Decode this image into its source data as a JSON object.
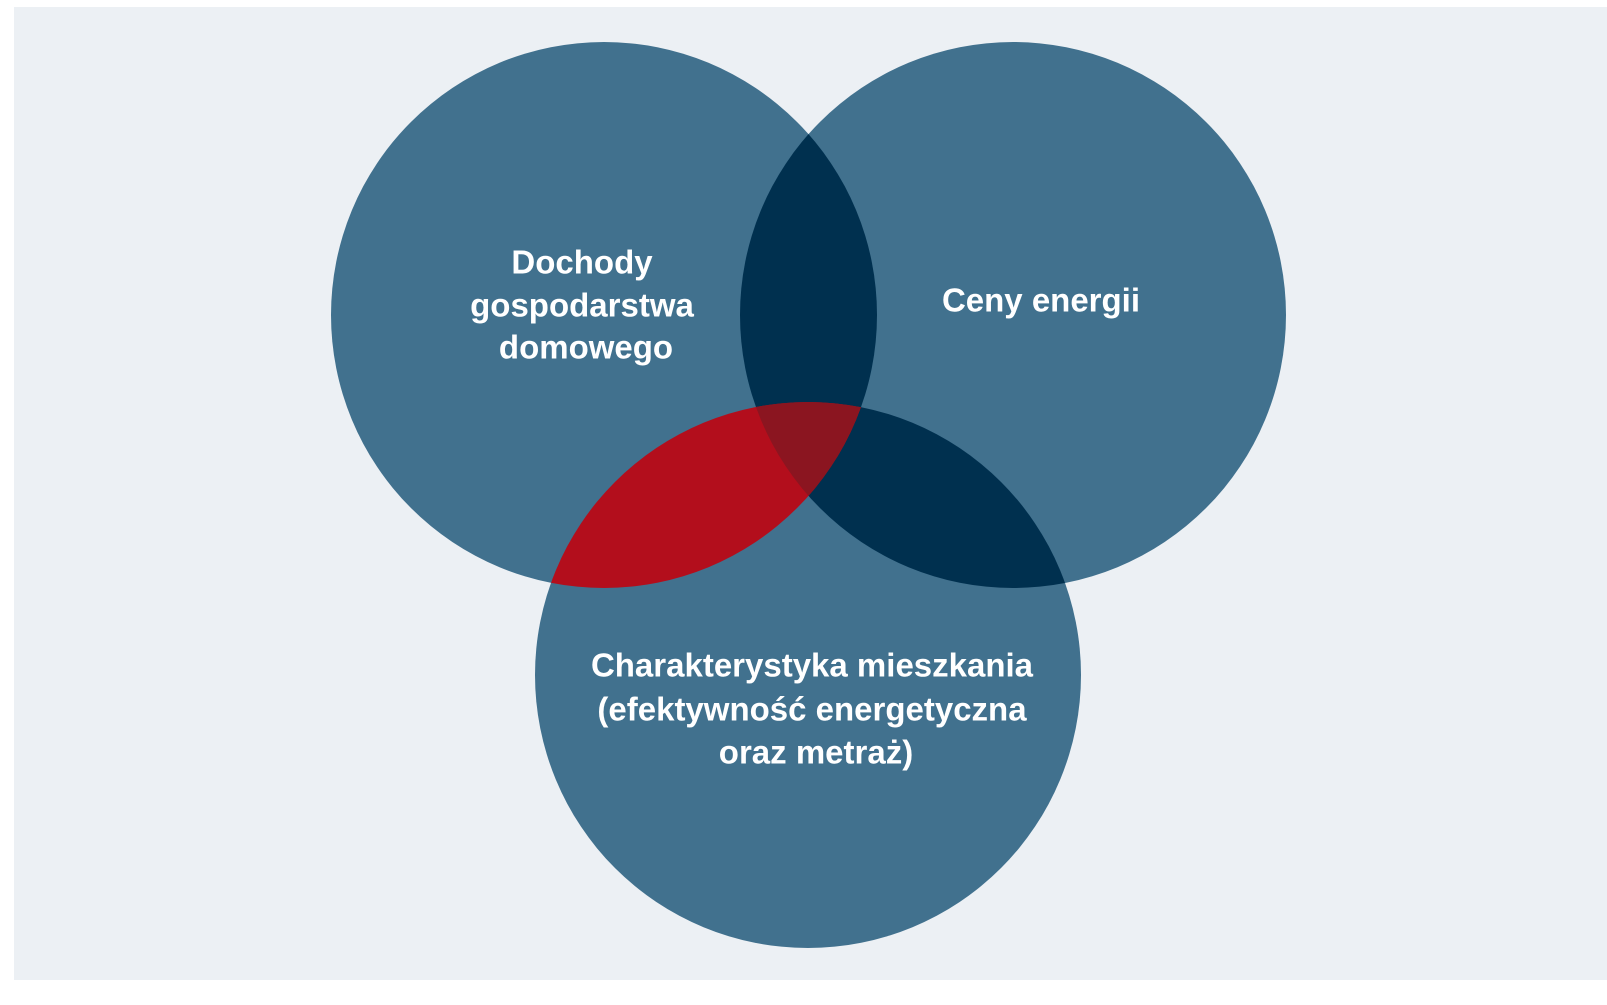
{
  "diagram": {
    "sets": [
      {
        "label_lines": [
          "Dochody",
          "gospodarstwa",
          "domowego"
        ]
      },
      {
        "label_lines": [
          "Ceny energii"
        ]
      },
      {
        "label_lines": [
          "Charakterystyka mieszkania",
          "(efektywność energetyczna",
          "oraz metraż)"
        ]
      }
    ]
  }
}
